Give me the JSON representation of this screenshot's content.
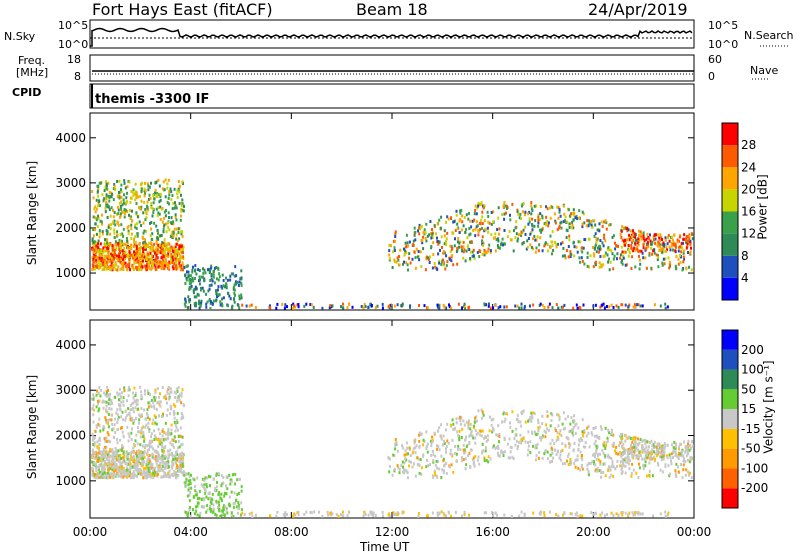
{
  "header": {
    "station": "Fort Hays East (fitACF)",
    "beam": "Beam 18",
    "date": "24/Apr/2019"
  },
  "strip": {
    "nsky_label": "N.Sky",
    "nsearch_label": "N.Search",
    "freq_label1": "Freq.",
    "freq_label2": "[MHz]",
    "nave_label": "Nave",
    "cpid_label": "CPID",
    "cpid_value": "themis -3300 IF",
    "noise_left_top": "10^5",
    "noise_left_bot": "10^0",
    "noise_right_top": "10^5",
    "noise_right_bot": "10^0",
    "freq_top": "18",
    "freq_bot": "8",
    "nave_top": "60",
    "nave_bot": "0"
  },
  "colors": {
    "power": [
      "#0000ff",
      "#1f4fbf",
      "#2e8b57",
      "#3aa14a",
      "#c8d400",
      "#ffa500",
      "#ff5a00",
      "#ff0000"
    ],
    "velocity": [
      "#ff0000",
      "#ff6000",
      "#ff9a00",
      "#ffc000",
      "#c8c8c8",
      "#66cc33",
      "#2e8b57",
      "#1f4fbf",
      "#0000ff"
    ]
  },
  "chart_data": [
    {
      "type": "heatmap",
      "panel": "power",
      "ylabel": "Slant Range [km]",
      "xlim": [
        "00:00",
        "24:00"
      ],
      "ylim": [
        180,
        4550
      ],
      "yticks": [
        1000,
        2000,
        3000,
        4000
      ],
      "colorbar_label": "Power [dB]",
      "colorbar_ticks": [
        "4",
        "8",
        "12",
        "16",
        "20",
        "24",
        "28"
      ]
    },
    {
      "type": "heatmap",
      "panel": "velocity",
      "ylabel": "Slant Range [km]",
      "xlabel": "Time UT",
      "xticks": [
        "00:00",
        "04:00",
        "08:00",
        "12:00",
        "16:00",
        "20:00",
        "00:00"
      ],
      "xlim": [
        "00:00",
        "24:00"
      ],
      "ylim": [
        180,
        4550
      ],
      "yticks": [
        1000,
        2000,
        3000,
        4000
      ],
      "colorbar_label": "Velocity [m s⁻¹]",
      "colorbar_ticks": [
        "-200",
        "-100",
        "-50",
        "-15",
        "15",
        "50",
        "100",
        "200"
      ]
    }
  ]
}
